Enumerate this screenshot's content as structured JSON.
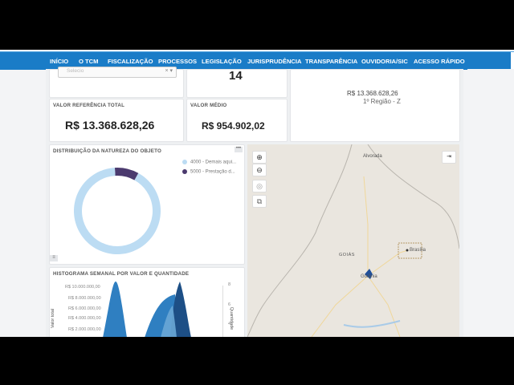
{
  "nav": {
    "items": [
      "INÍCIO",
      "O TCM",
      "FISCALIZAÇÃO",
      "PROCESSOS",
      "LEGISLAÇÃO",
      "JURISPRUDÊNCIA",
      "TRANSPARÊNCIA",
      "OUVIDORIA/SIC",
      "ACESSO RÁPIDO"
    ]
  },
  "filter": {
    "placeholder": "Selecio"
  },
  "top_count": {
    "value": "14"
  },
  "reference_card": {
    "title": "VALOR REFERÊNCIA TOTAL",
    "value": "R$ 13.368.628,26"
  },
  "average_card": {
    "title": "VALOR MÉDIO",
    "value": "R$ 954.902,02"
  },
  "region_card": {
    "value": "R$ 13.368.628,26",
    "label": "1º Região - Z"
  },
  "donut": {
    "title": "DISTRIBUIÇÃO DA NATUREZA DO OBJETO",
    "legend": [
      {
        "label": "4000 - Demais aqui...",
        "color": "#bcdcf3"
      },
      {
        "label": "5000 - Prestação d...",
        "color": "#4b3a6e"
      }
    ],
    "menu_icon": "more-dots-icon"
  },
  "chart_data": {
    "type": "pie",
    "categories": [
      "4000 - Demais aqui...",
      "5000 - Prestação d..."
    ],
    "values": [
      0.91,
      0.09
    ]
  },
  "histogram": {
    "title": "HISTOGRAMA SEMANAL POR VALOR E QUANTIDADE",
    "y_left_label": "Valor total",
    "y_right_label": "Quantidade",
    "y_ticks": [
      "R$ 10.000.000,00",
      "R$ 8.000.000,00",
      "R$ 6.000.000,00",
      "R$ 4.000.000,00",
      "R$ 2.000.000,00"
    ],
    "right_ticks": [
      "8",
      "6",
      "4"
    ]
  },
  "map": {
    "labels": {
      "alvorada": "Alvorada",
      "goias": "GOIÁS",
      "brasilia": "Brasília",
      "goiania": "Goiânia"
    },
    "controls": [
      "zoom-in-icon",
      "zoom-out-icon",
      "reset-icon",
      "layers-icon"
    ]
  }
}
